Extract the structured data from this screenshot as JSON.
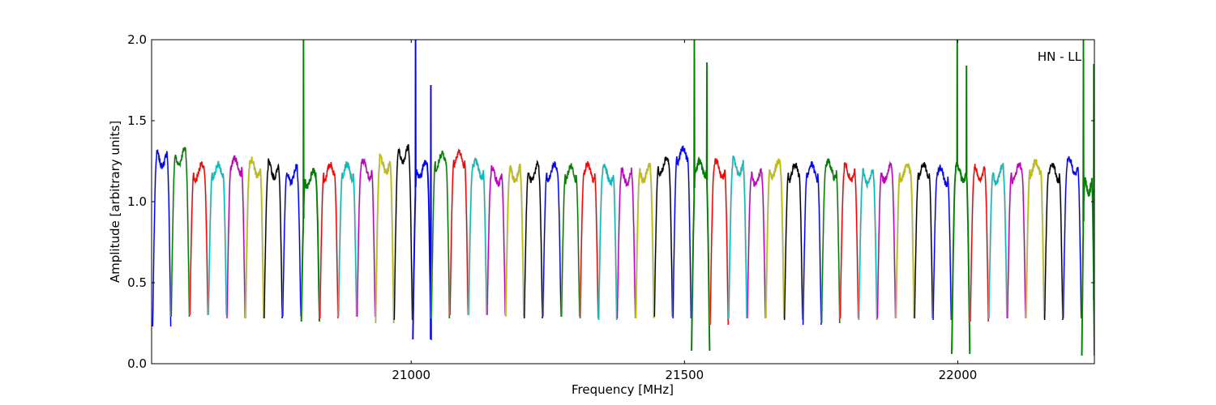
{
  "chart_data": {
    "type": "line",
    "title": "",
    "annotation": "HN - LL",
    "xlabel": "Frequency [MHz]",
    "ylabel": "Amplitude [arbitrary units]",
    "xlim": [
      20525,
      22250
    ],
    "ylim": [
      0.0,
      2.0
    ],
    "grid": false,
    "legend": "none",
    "x_ticks": [
      21000,
      21500,
      22000
    ],
    "x_tick_labels": [
      "21000",
      "21500",
      "22000"
    ],
    "y_ticks": [
      0.0,
      0.5,
      1.0,
      1.5,
      2.0
    ],
    "y_tick_labels": [
      "0.0",
      "0.5",
      "1.0",
      "1.5",
      "2.0"
    ],
    "color_cycle": [
      "#0000ff",
      "#008000",
      "#ff0000",
      "#00bfbf",
      "#bf00bf",
      "#bfbf00",
      "#000000"
    ],
    "trace_color": "#c0c0c0",
    "subbands": [
      {
        "start": 20527,
        "end": 20560,
        "plateau": 1.27,
        "low": 0.23
      },
      {
        "start": 20561,
        "end": 20594,
        "plateau": 1.28,
        "low": 0.29
      },
      {
        "start": 20595,
        "end": 20628,
        "plateau": 1.18,
        "low": 0.3
      },
      {
        "start": 20629,
        "end": 20662,
        "plateau": 1.18,
        "low": 0.3
      },
      {
        "start": 20663,
        "end": 20696,
        "plateau": 1.22,
        "low": 0.28
      },
      {
        "start": 20697,
        "end": 20730,
        "plateau": 1.21,
        "low": 0.28
      },
      {
        "start": 20731,
        "end": 20764,
        "plateau": 1.2,
        "low": 0.28
      },
      {
        "start": 20765,
        "end": 20798,
        "plateau": 1.17,
        "low": 0.29
      },
      {
        "start": 20799,
        "end": 20832,
        "plateau": 1.14,
        "low": 0.26,
        "spikes": [
          {
            "x": 20803,
            "y": 2.0
          }
        ]
      },
      {
        "start": 20833,
        "end": 20866,
        "plateau": 1.18,
        "low": 0.28
      },
      {
        "start": 20867,
        "end": 20900,
        "plateau": 1.18,
        "low": 0.29
      },
      {
        "start": 20901,
        "end": 20934,
        "plateau": 1.2,
        "low": 0.29
      },
      {
        "start": 20935,
        "end": 20968,
        "plateau": 1.23,
        "low": 0.25
      },
      {
        "start": 20969,
        "end": 21002,
        "plateau": 1.3,
        "low": 0.27
      },
      {
        "start": 21003,
        "end": 21036,
        "plateau": 1.2,
        "low": 0.15,
        "spikes": [
          {
            "x": 21008,
            "y": 2.0
          },
          {
            "x": 21036,
            "y": 1.72
          }
        ]
      },
      {
        "start": 21037,
        "end": 21070,
        "plateau": 1.25,
        "low": 0.28
      },
      {
        "start": 21071,
        "end": 21104,
        "plateau": 1.26,
        "low": 0.3
      },
      {
        "start": 21105,
        "end": 21138,
        "plateau": 1.2,
        "low": 0.3
      },
      {
        "start": 21139,
        "end": 21172,
        "plateau": 1.16,
        "low": 0.3
      },
      {
        "start": 21173,
        "end": 21206,
        "plateau": 1.18,
        "low": 0.29
      },
      {
        "start": 21207,
        "end": 21240,
        "plateau": 1.18,
        "low": 0.28
      },
      {
        "start": 21241,
        "end": 21274,
        "plateau": 1.18,
        "low": 0.29
      },
      {
        "start": 21275,
        "end": 21308,
        "plateau": 1.17,
        "low": 0.29
      },
      {
        "start": 21309,
        "end": 21342,
        "plateau": 1.18,
        "low": 0.28
      },
      {
        "start": 21343,
        "end": 21376,
        "plateau": 1.17,
        "low": 0.27
      },
      {
        "start": 21377,
        "end": 21410,
        "plateau": 1.16,
        "low": 0.28
      },
      {
        "start": 21411,
        "end": 21444,
        "plateau": 1.18,
        "low": 0.28
      },
      {
        "start": 21445,
        "end": 21478,
        "plateau": 1.22,
        "low": 0.29
      },
      {
        "start": 21479,
        "end": 21512,
        "plateau": 1.28,
        "low": 0.28
      },
      {
        "start": 21513,
        "end": 21546,
        "plateau": 1.2,
        "low": 0.08,
        "spikes": [
          {
            "x": 21518,
            "y": 2.0
          },
          {
            "x": 21541,
            "y": 1.86
          }
        ]
      },
      {
        "start": 21547,
        "end": 21580,
        "plateau": 1.2,
        "low": 0.24
      },
      {
        "start": 21581,
        "end": 21614,
        "plateau": 1.22,
        "low": 0.28
      },
      {
        "start": 21615,
        "end": 21648,
        "plateau": 1.15,
        "low": 0.28
      },
      {
        "start": 21649,
        "end": 21682,
        "plateau": 1.2,
        "low": 0.28
      },
      {
        "start": 21683,
        "end": 21716,
        "plateau": 1.18,
        "low": 0.27
      },
      {
        "start": 21717,
        "end": 21750,
        "plateau": 1.18,
        "low": 0.24
      },
      {
        "start": 21751,
        "end": 21784,
        "plateau": 1.2,
        "low": 0.25
      },
      {
        "start": 21785,
        "end": 21818,
        "plateau": 1.18,
        "low": 0.28
      },
      {
        "start": 21819,
        "end": 21852,
        "plateau": 1.16,
        "low": 0.27
      },
      {
        "start": 21853,
        "end": 21886,
        "plateau": 1.18,
        "low": 0.28
      },
      {
        "start": 21887,
        "end": 21920,
        "plateau": 1.18,
        "low": 0.28
      },
      {
        "start": 21921,
        "end": 21954,
        "plateau": 1.18,
        "low": 0.28
      },
      {
        "start": 21955,
        "end": 21988,
        "plateau": 1.16,
        "low": 0.27
      },
      {
        "start": 21989,
        "end": 22022,
        "plateau": 1.18,
        "low": 0.06,
        "spikes": [
          {
            "x": 21999,
            "y": 2.0
          },
          {
            "x": 22016,
            "y": 1.84
          }
        ]
      },
      {
        "start": 22023,
        "end": 22056,
        "plateau": 1.18,
        "low": 0.26
      },
      {
        "start": 22057,
        "end": 22090,
        "plateau": 1.17,
        "low": 0.28
      },
      {
        "start": 22091,
        "end": 22124,
        "plateau": 1.18,
        "low": 0.28
      },
      {
        "start": 22125,
        "end": 22158,
        "plateau": 1.2,
        "low": 0.28
      },
      {
        "start": 22159,
        "end": 22192,
        "plateau": 1.18,
        "low": 0.27
      },
      {
        "start": 22193,
        "end": 22226,
        "plateau": 1.22,
        "low": 0.28
      },
      {
        "start": 22227,
        "end": 22250,
        "plateau": 1.1,
        "low": 0.05,
        "spikes": [
          {
            "x": 22230,
            "y": 2.0
          },
          {
            "x": 22249,
            "y": 1.85
          }
        ]
      }
    ]
  }
}
